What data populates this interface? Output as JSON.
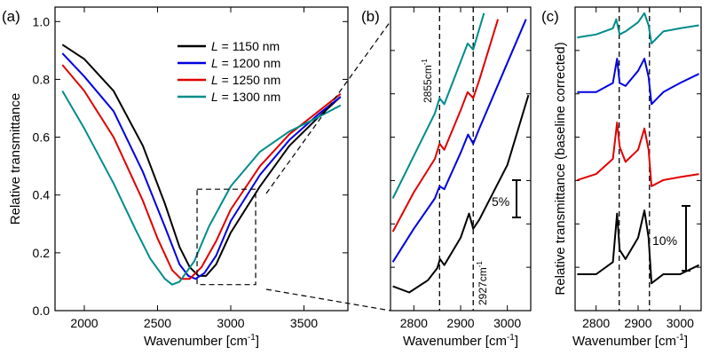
{
  "panels": [
    {
      "id": "a",
      "label": "(a)",
      "chart_data": {
        "type": "line",
        "xlabel": "Wavenumber [cm",
        "xlabel_sup": "-1",
        "xlabel_end": "]",
        "ylabel": "Relative transmittance",
        "xlim": [
          1800,
          3800
        ],
        "ylim": [
          0,
          1.05
        ],
        "xticks": [
          2000,
          2500,
          3000,
          3500
        ],
        "yticks": [
          0.0,
          0.2,
          0.4,
          0.6,
          0.8,
          1.0
        ],
        "ytick_labels": [
          "0.0",
          "0.2",
          "0.4",
          "0.6",
          "0.8",
          "1.0"
        ],
        "legend_position": "top-right",
        "series": [
          {
            "name": "L = 1150 nm",
            "name_var": "L",
            "name_rest": " = 1150 nm",
            "color": "#000000",
            "x": [
              1850,
              2000,
              2200,
              2400,
              2550,
              2650,
              2720,
              2780,
              2830,
              2900,
              3000,
              3200,
              3400,
              3600,
              3750
            ],
            "y": [
              0.92,
              0.87,
              0.76,
              0.57,
              0.37,
              0.22,
              0.15,
              0.12,
              0.12,
              0.16,
              0.27,
              0.43,
              0.57,
              0.67,
              0.74
            ]
          },
          {
            "name": "L = 1200 nm",
            "name_var": "L",
            "name_rest": " = 1200 nm",
            "color": "#0000e0",
            "x": [
              1850,
              2000,
              2200,
              2400,
              2550,
              2650,
              2710,
              2760,
              2820,
              2900,
              3000,
              3200,
              3400,
              3600,
              3750
            ],
            "y": [
              0.89,
              0.81,
              0.69,
              0.48,
              0.29,
              0.16,
              0.12,
              0.11,
              0.13,
              0.19,
              0.31,
              0.47,
              0.59,
              0.68,
              0.74
            ]
          },
          {
            "name": "L = 1250 nm",
            "name_var": "L",
            "name_rest": " = 1250 nm",
            "color": "#e00000",
            "x": [
              1850,
              2000,
              2200,
              2400,
              2500,
              2600,
              2660,
              2720,
              2800,
              2900,
              3000,
              3200,
              3400,
              3600,
              3750
            ],
            "y": [
              0.85,
              0.76,
              0.6,
              0.38,
              0.25,
              0.14,
              0.11,
              0.11,
              0.15,
              0.24,
              0.35,
              0.5,
              0.61,
              0.69,
              0.75
            ]
          },
          {
            "name": "L = 1300 nm",
            "name_var": "L",
            "name_rest": " = 1300 nm",
            "color": "#008b8b",
            "x": [
              1850,
              2000,
              2200,
              2350,
              2450,
              2550,
              2600,
              2650,
              2750,
              2850,
              3000,
              3200,
              3400,
              3600,
              3750
            ],
            "y": [
              0.76,
              0.63,
              0.44,
              0.28,
              0.18,
              0.11,
              0.09,
              0.1,
              0.17,
              0.29,
              0.43,
              0.55,
              0.62,
              0.67,
              0.71
            ]
          }
        ],
        "zoom_box": {
          "x": [
            2770,
            3170
          ],
          "y": [
            0.09,
            0.42
          ]
        }
      }
    },
    {
      "id": "b",
      "label": "(b)",
      "chart_data": {
        "type": "line",
        "xlabel": "Wavenumber [cm",
        "xlabel_sup": "-1",
        "xlabel_end": "]",
        "xlim": [
          2750,
          3050
        ],
        "ylim": [
          0,
          1
        ],
        "xticks": [
          2800,
          2900,
          3000
        ],
        "ticks_on_y": true,
        "vlines": [
          2855,
          2927
        ],
        "annotations": [
          "2855cm",
          "2927cm"
        ],
        "annotation_sup": "-1",
        "scale_bar_label": "5%",
        "series": [
          {
            "color": "#000000",
            "x": [
              2755,
              2790,
              2830,
              2850,
              2856,
              2865,
              2900,
              2918,
              2927,
              2940,
              3000,
              3045
            ],
            "y": [
              0.08,
              0.06,
              0.1,
              0.14,
              0.17,
              0.15,
              0.24,
              0.32,
              0.27,
              0.3,
              0.48,
              0.71
            ]
          },
          {
            "color": "#0000e0",
            "x": [
              2755,
              2800,
              2845,
              2855,
              2865,
              2900,
              2916,
              2927,
              2940,
              2990,
              3040
            ],
            "y": [
              0.16,
              0.27,
              0.37,
              0.41,
              0.4,
              0.52,
              0.58,
              0.55,
              0.6,
              0.78,
              0.96
            ]
          },
          {
            "color": "#e00000",
            "x": [
              2755,
              2800,
              2845,
              2855,
              2865,
              2900,
              2915,
              2927,
              2940,
              2980
            ],
            "y": [
              0.26,
              0.39,
              0.5,
              0.55,
              0.53,
              0.66,
              0.72,
              0.7,
              0.76,
              0.96
            ]
          },
          {
            "color": "#008b8b",
            "x": [
              2755,
              2800,
              2845,
              2855,
              2865,
              2900,
              2915,
              2927,
              2950
            ],
            "y": [
              0.37,
              0.51,
              0.65,
              0.7,
              0.68,
              0.82,
              0.88,
              0.86,
              0.98
            ]
          }
        ]
      }
    },
    {
      "id": "c",
      "label": "(c)",
      "chart_data": {
        "type": "line",
        "xlabel": "Wavenumber [cm",
        "xlabel_sup": "-1",
        "xlabel_end": "]",
        "ylabel": "Relative transmittance (baseline corrected)",
        "xlim": [
          2750,
          3050
        ],
        "ylim": [
          0,
          1
        ],
        "xticks": [
          2800,
          2900,
          3000
        ],
        "ticks_on_y": true,
        "vlines": [
          2855,
          2927
        ],
        "scale_bar_label": "10%",
        "series": [
          {
            "color": "#008b8b",
            "x": [
              2755,
              2800,
              2840,
              2848,
              2856,
              2870,
              2900,
              2915,
              2925,
              2932,
              2960,
              3000,
              3045
            ],
            "y": [
              0.9,
              0.91,
              0.93,
              0.96,
              0.91,
              0.92,
              0.95,
              0.98,
              0.94,
              0.88,
              0.92,
              0.93,
              0.94
            ]
          },
          {
            "color": "#0000e0",
            "x": [
              2755,
              2800,
              2840,
              2850,
              2856,
              2870,
              2900,
              2915,
              2925,
              2932,
              2960,
              3000,
              3045
            ],
            "y": [
              0.72,
              0.72,
              0.75,
              0.83,
              0.75,
              0.74,
              0.79,
              0.83,
              0.77,
              0.68,
              0.72,
              0.75,
              0.78
            ]
          },
          {
            "color": "#e00000",
            "x": [
              2755,
              2800,
              2840,
              2850,
              2856,
              2870,
              2900,
              2915,
              2925,
              2932,
              2960,
              3000,
              3045
            ],
            "y": [
              0.43,
              0.45,
              0.5,
              0.62,
              0.54,
              0.49,
              0.53,
              0.6,
              0.53,
              0.41,
              0.43,
              0.44,
              0.45
            ]
          },
          {
            "color": "#000000",
            "x": [
              2755,
              2800,
              2840,
              2850,
              2856,
              2870,
              2900,
              2915,
              2925,
              2932,
              2960,
              3000,
              3045
            ],
            "y": [
              0.12,
              0.12,
              0.16,
              0.32,
              0.2,
              0.17,
              0.24,
              0.33,
              0.24,
              0.09,
              0.12,
              0.12,
              0.15
            ]
          }
        ]
      }
    }
  ]
}
